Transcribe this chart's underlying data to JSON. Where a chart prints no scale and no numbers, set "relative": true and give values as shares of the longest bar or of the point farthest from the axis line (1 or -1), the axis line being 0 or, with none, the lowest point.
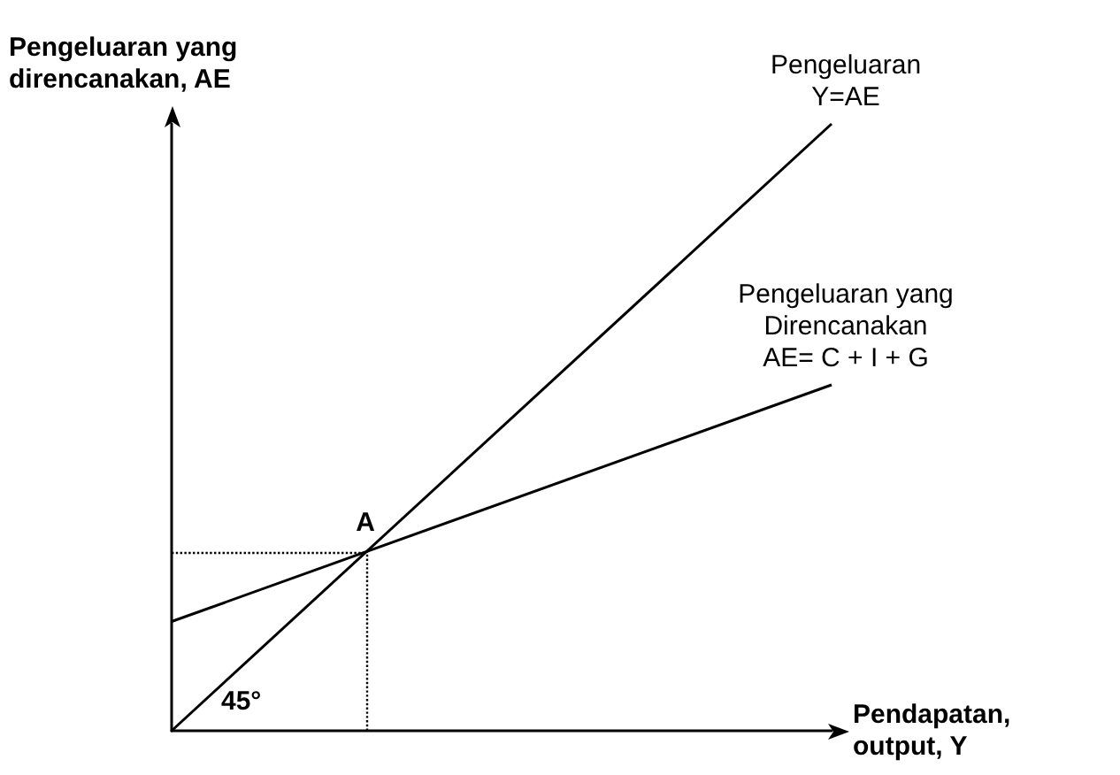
{
  "chart_data": {
    "type": "line",
    "relative": true,
    "ylabel": "Pengeluaran yang\ndirencanakan, AE",
    "xlabel": "Pendapatan,\noutput, Y",
    "categories": [
      null,
      null
    ],
    "series": [
      {
        "name": "Pengeluaran\nY=AE",
        "color": "#000000",
        "values": [
          0,
          1
        ]
      },
      {
        "name": "Pengeluaran yang\nDirencanakan\nAE= C + I + G",
        "color": "#000000",
        "values": [
          0.18,
          0.57
        ]
      }
    ],
    "annotations": [
      "A",
      "45°"
    ],
    "marker": "none",
    "line_style": "solid",
    "grid": false,
    "legend": false
  }
}
